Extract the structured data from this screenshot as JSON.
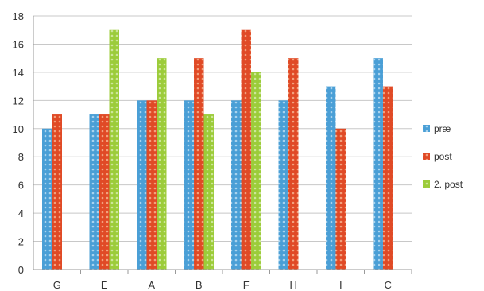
{
  "chart_data": {
    "type": "bar",
    "categories": [
      "G",
      "E",
      "A",
      "B",
      "F",
      "H",
      "I",
      "C"
    ],
    "series": [
      {
        "name": "præ",
        "color": "#4a9fd6",
        "values": [
          10,
          11,
          12,
          12,
          12,
          12,
          13,
          15
        ]
      },
      {
        "name": "post",
        "color": "#e04a26",
        "values": [
          11,
          11,
          12,
          15,
          17,
          15,
          10,
          13
        ]
      },
      {
        "name": "2. post",
        "color": "#9ccc3a",
        "values": [
          null,
          17,
          15,
          11,
          14,
          null,
          null,
          null
        ]
      }
    ],
    "ylim": [
      0,
      18
    ],
    "yticks": [
      0,
      2,
      4,
      6,
      8,
      10,
      12,
      14,
      16,
      18
    ],
    "grid": true,
    "legend_position": "right",
    "title": "",
    "xlabel": "",
    "ylabel": ""
  }
}
